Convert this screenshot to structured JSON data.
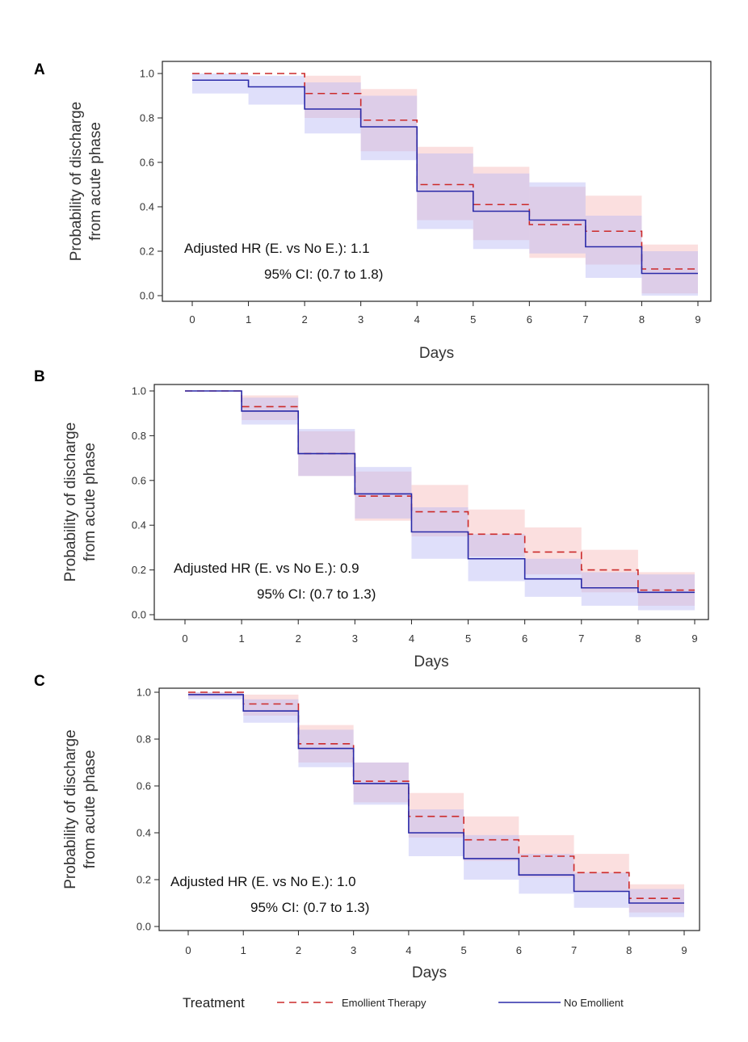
{
  "colors": {
    "emollient": "#cc2a2a",
    "no_emollient": "#2a2aa8",
    "emollient_band": "#f7b8b8",
    "no_emollient_band": "#b9b9f5"
  },
  "legend": {
    "title": "Treatment",
    "entries": [
      "Emollient Therapy",
      "No Emollient"
    ]
  },
  "chart_data": [
    {
      "panel": "A",
      "type": "line",
      "step": true,
      "xlabel": "Days",
      "ylabel_lines": [
        "Probability of discharge",
        "from acute phase"
      ],
      "x": [
        0,
        1,
        2,
        3,
        4,
        5,
        6,
        7,
        8,
        9
      ],
      "xticks": [
        "0",
        "1",
        "2",
        "3",
        "4",
        "5",
        "6",
        "7",
        "8",
        "9"
      ],
      "yticks": [
        "0.0",
        "0.2",
        "0.4",
        "0.6",
        "0.8",
        "1.0"
      ],
      "ylim": [
        0,
        1.0
      ],
      "annotation": [
        "Adjusted HR (E. vs No E.): 1.1",
        "95% CI: (0.7 to 1.8)"
      ],
      "series": [
        {
          "name": "Emollient Therapy",
          "values": [
            1.0,
            1.0,
            0.91,
            0.79,
            0.5,
            0.41,
            0.32,
            0.29,
            0.12,
            0.12
          ],
          "lower": [
            1.0,
            1.0,
            0.8,
            0.65,
            0.34,
            0.25,
            0.17,
            0.14,
            0.01,
            0.01
          ],
          "upper": [
            1.0,
            1.0,
            0.99,
            0.93,
            0.67,
            0.58,
            0.49,
            0.45,
            0.23,
            0.23
          ]
        },
        {
          "name": "No Emollient",
          "values": [
            0.97,
            0.94,
            0.84,
            0.76,
            0.47,
            0.38,
            0.34,
            0.22,
            0.1,
            0.1
          ],
          "lower": [
            0.91,
            0.86,
            0.73,
            0.61,
            0.3,
            0.21,
            0.19,
            0.08,
            0.0,
            0.0
          ],
          "upper": [
            1.0,
            0.99,
            0.96,
            0.9,
            0.64,
            0.55,
            0.51,
            0.36,
            0.2,
            0.2
          ]
        }
      ]
    },
    {
      "panel": "B",
      "type": "line",
      "step": true,
      "xlabel": "Days",
      "ylabel_lines": [
        "Probability of discharge",
        "from acute phase"
      ],
      "x": [
        0,
        1,
        2,
        3,
        4,
        5,
        6,
        7,
        8,
        9
      ],
      "xticks": [
        "0",
        "1",
        "2",
        "3",
        "4",
        "5",
        "6",
        "7",
        "8",
        "9"
      ],
      "yticks": [
        "0.0",
        "0.2",
        "0.4",
        "0.6",
        "0.8",
        "1.0"
      ],
      "ylim": [
        0,
        1.0
      ],
      "annotation": [
        "Adjusted HR (E. vs No E.): 0.9",
        "95% CI: (0.7 to 1.3)"
      ],
      "series": [
        {
          "name": "Emollient Therapy",
          "values": [
            1.0,
            0.93,
            0.72,
            0.53,
            0.46,
            0.36,
            0.28,
            0.2,
            0.11,
            0.11
          ],
          "lower": [
            1.0,
            0.87,
            0.62,
            0.42,
            0.35,
            0.26,
            0.18,
            0.1,
            0.04,
            0.04
          ],
          "upper": [
            1.0,
            0.98,
            0.82,
            0.64,
            0.58,
            0.47,
            0.39,
            0.29,
            0.19,
            0.19
          ]
        },
        {
          "name": "No Emollient",
          "values": [
            1.0,
            0.91,
            0.72,
            0.54,
            0.37,
            0.25,
            0.16,
            0.12,
            0.1,
            0.1
          ],
          "lower": [
            1.0,
            0.85,
            0.62,
            0.43,
            0.25,
            0.15,
            0.08,
            0.04,
            0.02,
            0.02
          ],
          "upper": [
            1.0,
            0.97,
            0.83,
            0.66,
            0.48,
            0.36,
            0.25,
            0.19,
            0.18,
            0.18
          ]
        }
      ]
    },
    {
      "panel": "C",
      "type": "line",
      "step": true,
      "xlabel": "Days",
      "ylabel_lines": [
        "Probability of discharge",
        "from acute phase"
      ],
      "x": [
        0,
        1,
        2,
        3,
        4,
        5,
        6,
        7,
        8,
        9
      ],
      "xticks": [
        "0",
        "1",
        "2",
        "3",
        "4",
        "5",
        "6",
        "7",
        "8",
        "9"
      ],
      "yticks": [
        "0.0",
        "0.2",
        "0.4",
        "0.6",
        "0.8",
        "1.0"
      ],
      "ylim": [
        0,
        1.0
      ],
      "annotation": [
        "Adjusted HR (E. vs No E.): 1.0",
        "95% CI: (0.7 to 1.3)"
      ],
      "series": [
        {
          "name": "Emollient Therapy",
          "values": [
            1.0,
            0.95,
            0.78,
            0.62,
            0.47,
            0.37,
            0.3,
            0.23,
            0.12,
            0.12
          ],
          "lower": [
            0.98,
            0.9,
            0.7,
            0.53,
            0.38,
            0.28,
            0.21,
            0.15,
            0.06,
            0.06
          ],
          "upper": [
            1.0,
            0.99,
            0.86,
            0.7,
            0.57,
            0.47,
            0.39,
            0.31,
            0.18,
            0.18
          ]
        },
        {
          "name": "No Emollient",
          "values": [
            0.99,
            0.92,
            0.76,
            0.61,
            0.4,
            0.29,
            0.22,
            0.15,
            0.1,
            0.1
          ],
          "lower": [
            0.97,
            0.87,
            0.68,
            0.52,
            0.3,
            0.2,
            0.14,
            0.08,
            0.04,
            0.04
          ],
          "upper": [
            1.0,
            0.97,
            0.84,
            0.7,
            0.5,
            0.39,
            0.31,
            0.23,
            0.16,
            0.16
          ]
        }
      ]
    }
  ]
}
